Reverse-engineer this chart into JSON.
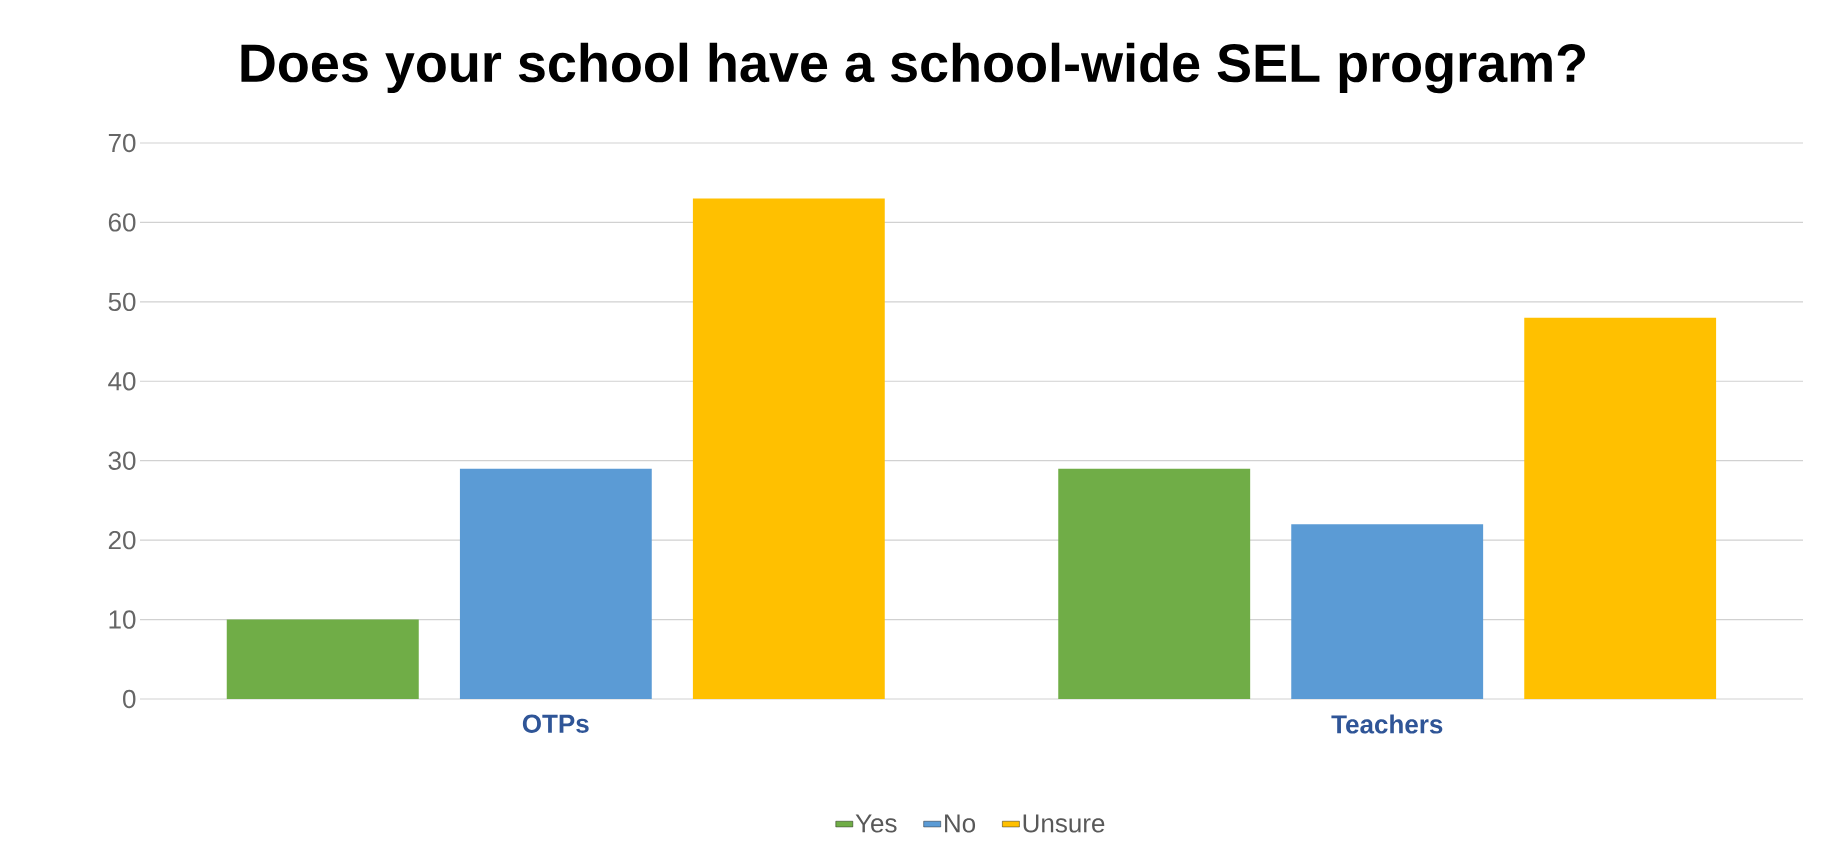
{
  "chart_data": {
    "type": "bar",
    "title": "Does your school have a school-wide SEL program?",
    "categories": [
      "OTPs",
      "Teachers"
    ],
    "series": [
      {
        "name": "Yes",
        "color": "#70ad47",
        "values": [
          10,
          29
        ]
      },
      {
        "name": "No",
        "color": "#5b9bd5",
        "values": [
          29,
          22
        ]
      },
      {
        "name": "Unsure",
        "color": "#ffc000",
        "values": [
          63,
          48
        ]
      }
    ],
    "ylim": [
      0,
      70
    ],
    "yticks": [
      0,
      10,
      20,
      30,
      40,
      50,
      60,
      70
    ],
    "grid": "y",
    "legend": "bottom"
  }
}
